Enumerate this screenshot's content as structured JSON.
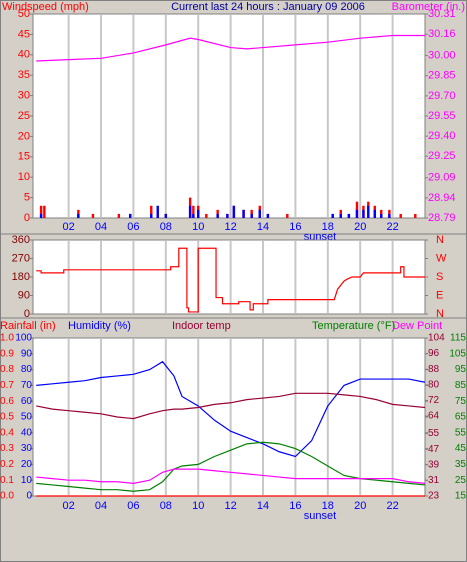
{
  "chart_data": [
    {
      "type": "combo",
      "title": "Current last 24 hours : January 09 2006",
      "annotation": "sunset",
      "xlim": [
        -0.2,
        24
      ],
      "xticks": [
        {
          "value": 2,
          "label": "02"
        },
        {
          "value": 4,
          "label": "04"
        },
        {
          "value": 6,
          "label": "06"
        },
        {
          "value": 8,
          "label": "08"
        },
        {
          "value": 10,
          "label": "10"
        },
        {
          "value": 12,
          "label": "12"
        },
        {
          "value": 14,
          "label": "14"
        },
        {
          "value": 16,
          "label": "16"
        },
        {
          "value": 18,
          "label": "18"
        },
        {
          "value": 20,
          "label": "20"
        },
        {
          "value": 22,
          "label": "22"
        }
      ],
      "ylim": [
        0,
        50
      ],
      "yticks": [
        0,
        5,
        10,
        15,
        20,
        25,
        30,
        35,
        40,
        45,
        50
      ],
      "y2lim": [
        28.79,
        30.31
      ],
      "y2ticks": [
        28.79,
        28.94,
        29.09,
        29.25,
        {
          "value": 29.4,
          "label": "29.40"
        },
        29.55,
        {
          "value": 29.7,
          "label": "29.70"
        },
        29.85,
        {
          "value": 30,
          "label": "30.00"
        },
        30.16,
        30.31
      ],
      "axis_colors": {
        "x": "#0000ff",
        "y": "#ff0000",
        "y2": "#ff00ff"
      },
      "series": [
        {
          "name": "Windspeed (mph)",
          "type": "bar",
          "color": "#ff0000",
          "axis": "y",
          "x": [
            0.3,
            0.5,
            2.6,
            3.5,
            5.1,
            5.8,
            7.1,
            7.5,
            8.0,
            9.5,
            9.7,
            10.0,
            10.5,
            11.2,
            11.8,
            12.2,
            12.8,
            13.3,
            13.8,
            14.3,
            15.5,
            18.3,
            18.8,
            19.3,
            19.8,
            20.2,
            20.5,
            20.9,
            21.3,
            21.8,
            22.5,
            23.4
          ],
          "values": [
            3,
            3,
            2,
            1,
            1,
            1,
            3,
            2,
            1,
            5,
            3,
            3,
            1,
            2,
            1,
            3,
            2,
            2,
            3,
            1,
            1,
            1,
            2,
            1,
            4,
            3,
            4,
            3,
            2,
            2,
            1,
            1
          ]
        },
        {
          "type": "bar",
          "color": "#0000ff",
          "axis": "y",
          "x": [
            0.3,
            0.5,
            2.6,
            3.5,
            5.1,
            5.8,
            7.1,
            7.5,
            8.0,
            9.5,
            9.7,
            10.0,
            10.5,
            11.2,
            11.8,
            12.2,
            12.8,
            13.3,
            13.8,
            14.3,
            15.5,
            18.3,
            18.8,
            19.3,
            19.8,
            20.2,
            20.5,
            20.9,
            21.3,
            21.8,
            22.5,
            23.4
          ],
          "values": [
            1,
            0,
            1,
            0,
            0,
            1,
            1,
            3,
            1,
            3,
            1,
            2,
            0,
            1,
            1,
            3,
            2,
            1,
            2,
            1,
            0,
            1,
            1,
            1,
            2,
            2,
            3,
            2,
            1,
            1,
            0,
            0
          ]
        },
        {
          "name": "Barometer (in.)",
          "type": "line",
          "color": "#ff00ff",
          "axis": "y2",
          "x": [
            0,
            2,
            4,
            6,
            8,
            9.5,
            10,
            12,
            13,
            14,
            16,
            18,
            20,
            22,
            24
          ],
          "values": [
            29.96,
            29.97,
            29.98,
            30.02,
            30.08,
            30.13,
            30.12,
            30.06,
            30.05,
            30.06,
            30.08,
            30.1,
            30.13,
            30.15,
            30.15
          ]
        }
      ]
    },
    {
      "type": "line",
      "xlim": [
        -0.2,
        24
      ],
      "xticks": [
        2,
        4,
        6,
        8,
        10,
        12,
        14,
        16,
        18,
        20,
        22
      ],
      "ylim": [
        0,
        360
      ],
      "yticks": [
        0,
        90,
        180,
        270,
        360
      ],
      "y2lim": [
        0,
        360
      ],
      "y2ticks": [
        {
          "value": 0,
          "label": "N"
        },
        {
          "value": 90,
          "label": "E"
        },
        {
          "value": 180,
          "label": "S"
        },
        {
          "value": 270,
          "label": "W"
        },
        {
          "value": 360,
          "label": "N"
        }
      ],
      "axis_colors": {
        "y": "#800000",
        "y2": "#ff0000"
      },
      "series": [
        {
          "type": "line",
          "color": "#ff0000",
          "axis": "y",
          "x": [
            0,
            0.3,
            0.3,
            1.7,
            1.7,
            8.3,
            8.3,
            8.8,
            8.8,
            9.3,
            9.3,
            9.4,
            9.4,
            10,
            10,
            11.1,
            11.1,
            11.5,
            11.5,
            12.5,
            12.5,
            13.2,
            13.2,
            13.4,
            13.4,
            14.3,
            14.3,
            18.4,
            18.6,
            19,
            19.2,
            19.5,
            20,
            20.2,
            22.5,
            22.5,
            22.7,
            22.7,
            24
          ],
          "values": [
            210,
            210,
            200,
            200,
            215,
            215,
            230,
            230,
            320,
            320,
            30,
            30,
            10,
            10,
            320,
            320,
            80,
            80,
            50,
            50,
            60,
            60,
            20,
            20,
            50,
            50,
            70,
            70,
            120,
            160,
            170,
            180,
            180,
            200,
            200,
            230,
            230,
            180,
            180
          ]
        }
      ]
    },
    {
      "type": "combo",
      "annotation": "sunset",
      "xlim": [
        -0.2,
        24
      ],
      "xticks": [
        {
          "value": 2,
          "label": "02"
        },
        {
          "value": 4,
          "label": "04"
        },
        {
          "value": 6,
          "label": "06"
        },
        {
          "value": 8,
          "label": "08"
        },
        {
          "value": 10,
          "label": "10"
        },
        {
          "value": 12,
          "label": "12"
        },
        {
          "value": 14,
          "label": "14"
        },
        {
          "value": 16,
          "label": "16"
        },
        {
          "value": 18,
          "label": "18"
        },
        {
          "value": 20,
          "label": "20"
        },
        {
          "value": 22,
          "label": "22"
        }
      ],
      "ylim": [
        0,
        1
      ],
      "yticks": [
        {
          "value": 0,
          "label": "0.0"
        },
        0.1,
        0.2,
        0.3,
        0.4,
        0.5,
        0.6,
        0.7,
        0.8,
        0.9,
        {
          "value": 1,
          "label": "1.0"
        }
      ],
      "y2lim": [
        0,
        100
      ],
      "y2ticks": [
        0,
        10,
        20,
        30,
        40,
        50,
        60,
        70,
        80,
        90,
        100
      ],
      "y3lim": [
        23,
        104
      ],
      "y3ticks": [
        23,
        31,
        39,
        47,
        55,
        64,
        72,
        80,
        88,
        96,
        104
      ],
      "y4lim": [
        15,
        115
      ],
      "y4ticks": [
        15,
        25,
        35,
        45,
        55,
        65,
        75,
        85,
        95,
        105,
        115
      ],
      "axis_colors": {
        "x": "#0000ff",
        "y": "#ff0000",
        "y2": "#0000ff",
        "y3": "#990033",
        "y4": "#008000"
      },
      "series": [
        {
          "name": "Rainfall (in)",
          "type": "line",
          "color": "#ff0000",
          "axis": "y",
          "x": [
            0,
            1,
            2,
            3,
            4,
            5,
            6,
            7,
            7.8,
            8.5,
            9,
            10,
            11,
            12,
            13,
            14,
            15,
            16,
            17,
            18,
            19,
            20,
            21,
            22,
            23,
            24
          ],
          "values": [
            0,
            0,
            0,
            0,
            0,
            0,
            0,
            0,
            0,
            0,
            0,
            0,
            0,
            0,
            0,
            0,
            0,
            0,
            0,
            0,
            0,
            0,
            0,
            0,
            0,
            0
          ]
        },
        {
          "name": "Humidity (%)",
          "type": "line",
          "color": "#0000ff",
          "axis": "y2",
          "x": [
            0,
            1,
            2,
            3,
            4,
            5,
            6,
            7,
            7.8,
            8.5,
            9,
            10,
            11,
            12,
            13,
            14,
            15,
            16,
            17,
            18,
            19,
            20,
            21,
            22,
            23,
            24
          ],
          "values": [
            70,
            71,
            72,
            73,
            75,
            76,
            77,
            80,
            85,
            76,
            63,
            57,
            48,
            41,
            37,
            33,
            28,
            25,
            35,
            57,
            70,
            74,
            74,
            74,
            74,
            72
          ]
        },
        {
          "name": "Indoor temp",
          "type": "line",
          "color": "#990033",
          "axis": "y4",
          "x": [
            0,
            1,
            2,
            3,
            4,
            5,
            6,
            7,
            7.8,
            8.5,
            9,
            10,
            11,
            12,
            13,
            14,
            15,
            16,
            17,
            18,
            19,
            20,
            21,
            22,
            23,
            24
          ],
          "values": [
            72,
            70,
            69,
            68,
            67,
            65,
            64,
            67,
            69,
            70,
            70,
            71,
            73,
            74,
            76,
            77,
            78,
            80,
            80,
            80,
            79,
            78,
            76,
            73,
            72,
            71
          ]
        },
        {
          "name": "Temperature (°F)",
          "type": "line",
          "color": "#008000",
          "axis": "y4",
          "x": [
            0,
            1,
            2,
            3,
            4,
            5,
            6,
            7,
            7.8,
            8.5,
            9,
            10,
            11,
            12,
            13,
            14,
            15,
            16,
            17,
            18,
            19,
            20,
            21,
            22,
            23,
            24
          ],
          "values": [
            23,
            22,
            21,
            20,
            19,
            19,
            18,
            19,
            24,
            32,
            34,
            35,
            40,
            44,
            48,
            49,
            48,
            45,
            40,
            34,
            28,
            26,
            25,
            24,
            23,
            22
          ]
        },
        {
          "name": "Dew Point",
          "type": "line",
          "color": "#ff00ff",
          "axis": "y4",
          "x": [
            0,
            1,
            2,
            3,
            4,
            5,
            6,
            7,
            7.8,
            8.5,
            9,
            10,
            11,
            12,
            13,
            14,
            15,
            16,
            17,
            18,
            19,
            20,
            21,
            22,
            23,
            24
          ],
          "values": [
            27,
            26,
            25,
            25,
            24,
            24,
            23,
            25,
            30,
            32,
            32,
            32,
            31,
            30,
            29,
            28,
            27,
            26,
            26,
            26,
            26,
            26,
            26,
            26,
            24,
            23
          ]
        }
      ]
    }
  ]
}
